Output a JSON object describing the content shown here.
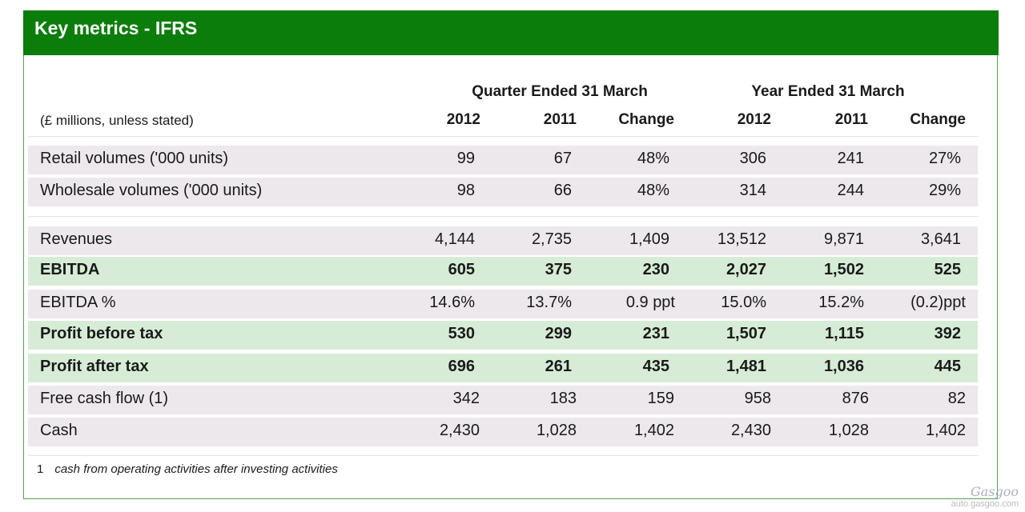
{
  "header": {
    "title": "Key metrics - IFRS"
  },
  "groups": {
    "quarter": "Quarter Ended 31 March",
    "year": "Year Ended 31 March"
  },
  "units_label": "(£ millions, unless stated)",
  "columns": [
    "2012",
    "2011",
    "Change",
    "2012",
    "2011",
    "Change"
  ],
  "rows": [
    {
      "label": "Retail volumes ('000 units)",
      "values": [
        "99",
        "67",
        "48%",
        "306",
        "241",
        "27%"
      ]
    },
    {
      "label": "Wholesale volumes ('000 units)",
      "values": [
        "98",
        "66",
        "48%",
        "314",
        "244",
        "29%"
      ]
    },
    {
      "label": "Revenues",
      "values": [
        "4,144",
        "2,735",
        "1,409",
        "13,512",
        "9,871",
        "3,641"
      ]
    },
    {
      "label": "EBITDA",
      "values": [
        "605",
        "375",
        "230",
        "2,027",
        "1,502",
        "525"
      ]
    },
    {
      "label": "EBITDA %",
      "values": [
        "14.6%",
        "13.7%",
        "0.9 ppt",
        "15.0%",
        "15.2%",
        "(0.2)ppt"
      ]
    },
    {
      "label": "Profit before tax",
      "values": [
        "530",
        "299",
        "231",
        "1,507",
        "1,115",
        "392"
      ]
    },
    {
      "label": "Profit after tax",
      "values": [
        "696",
        "261",
        "435",
        "1,481",
        "1,036",
        "445"
      ]
    },
    {
      "label": "Free cash flow (1)",
      "values": [
        "342",
        "183",
        "159",
        "958",
        "876",
        "82"
      ]
    },
    {
      "label": "Cash",
      "values": [
        "2,430",
        "1,028",
        "1,402",
        "2,430",
        "1,028",
        "1,402"
      ]
    }
  ],
  "footnote": {
    "number": "1",
    "text": "cash from operating activities after investing activities"
  },
  "watermark": {
    "logo": "Gasgoo",
    "url": "auto.gasgoo.com"
  },
  "colors": {
    "header_bg": "#0a7d0a",
    "highlight_row": "#d6ecd6",
    "grey_row": "#ece8ec"
  }
}
